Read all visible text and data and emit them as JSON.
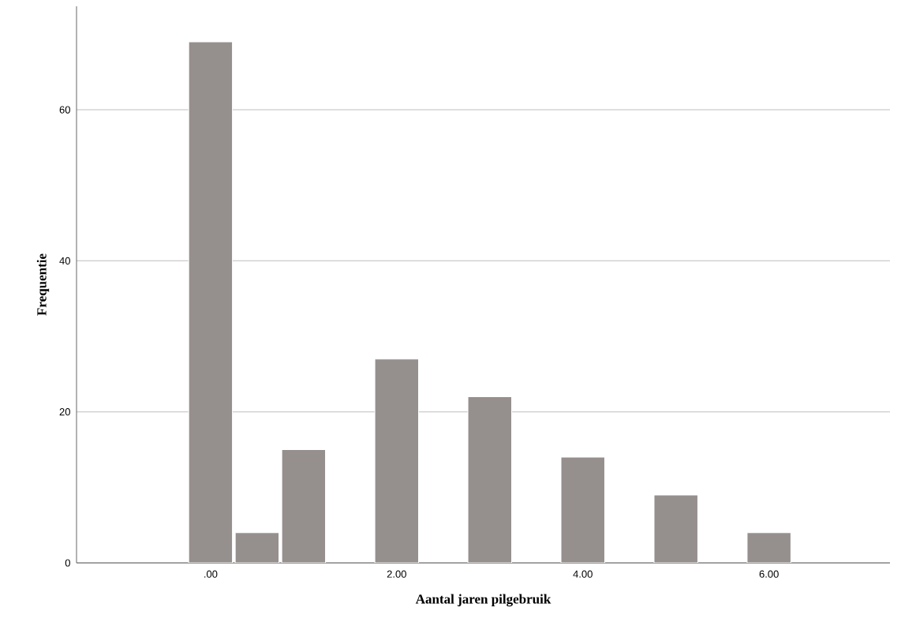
{
  "chart_data": {
    "type": "bar",
    "xlabel": "Aantal jaren pilgebruik",
    "ylabel": "Frequentie",
    "x": [
      0,
      0.5,
      1,
      2,
      3,
      4,
      5,
      6
    ],
    "values": [
      69,
      4,
      15,
      27,
      22,
      14,
      9,
      4
    ],
    "color": "#958f8e",
    "xlim": [
      -1.44,
      7.3
    ],
    "xticks": [
      {
        "value": 0,
        "label": ".00"
      },
      {
        "value": 2,
        "label": "2.00"
      },
      {
        "value": 4,
        "label": "4.00"
      },
      {
        "value": 6,
        "label": "6.00"
      }
    ],
    "ylim": [
      0,
      73.7
    ],
    "yticks": [
      0,
      20,
      40,
      60
    ],
    "grid": "y"
  }
}
